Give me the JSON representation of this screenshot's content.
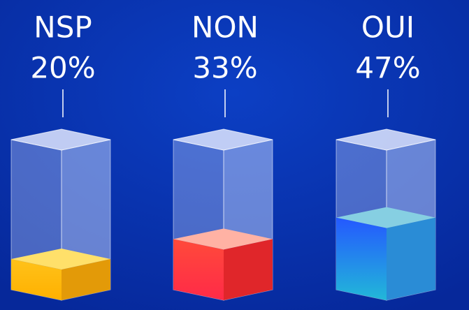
{
  "chart_data": {
    "type": "bar3d",
    "categories": [
      "NSP",
      "NON",
      "OUI"
    ],
    "values": [
      20,
      33,
      47
    ],
    "value_labels": [
      "20%",
      "33%",
      "47%"
    ],
    "colors": [
      "#ffc21a",
      "#ff3b3b",
      "#2a62ff"
    ]
  }
}
